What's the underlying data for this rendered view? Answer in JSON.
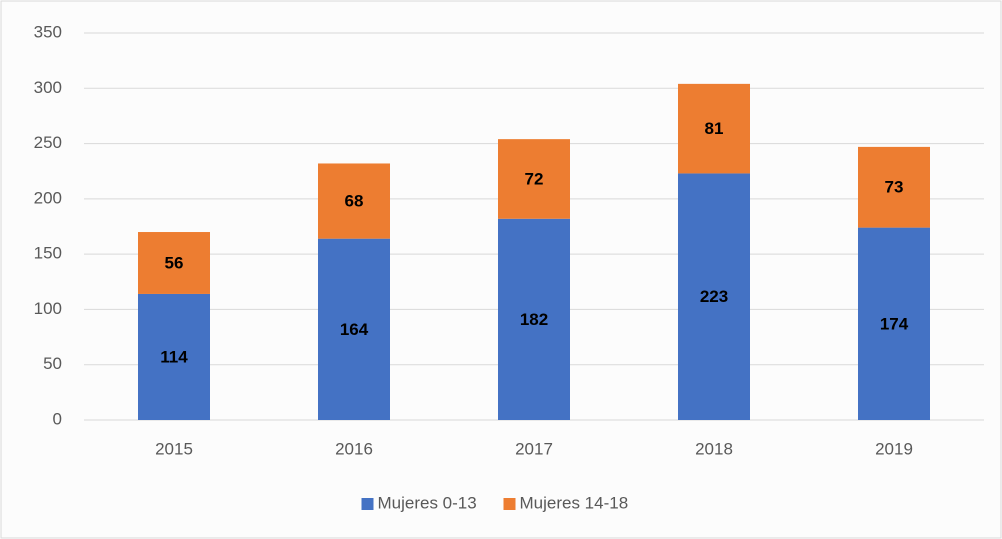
{
  "chart_data": {
    "type": "bar",
    "stacked": true,
    "categories": [
      "2015",
      "2016",
      "2017",
      "2018",
      "2019"
    ],
    "series": [
      {
        "name": "Mujeres 0-13",
        "color": "#4472c4",
        "values": [
          114,
          164,
          182,
          223,
          174
        ]
      },
      {
        "name": "Mujeres 14-18",
        "color": "#ed7d31",
        "values": [
          56,
          68,
          72,
          81,
          73
        ]
      }
    ],
    "ylim": [
      0,
      350
    ],
    "yticks": [
      0,
      50,
      100,
      150,
      200,
      250,
      300,
      350
    ],
    "grid": true,
    "legend": "bottom"
  }
}
